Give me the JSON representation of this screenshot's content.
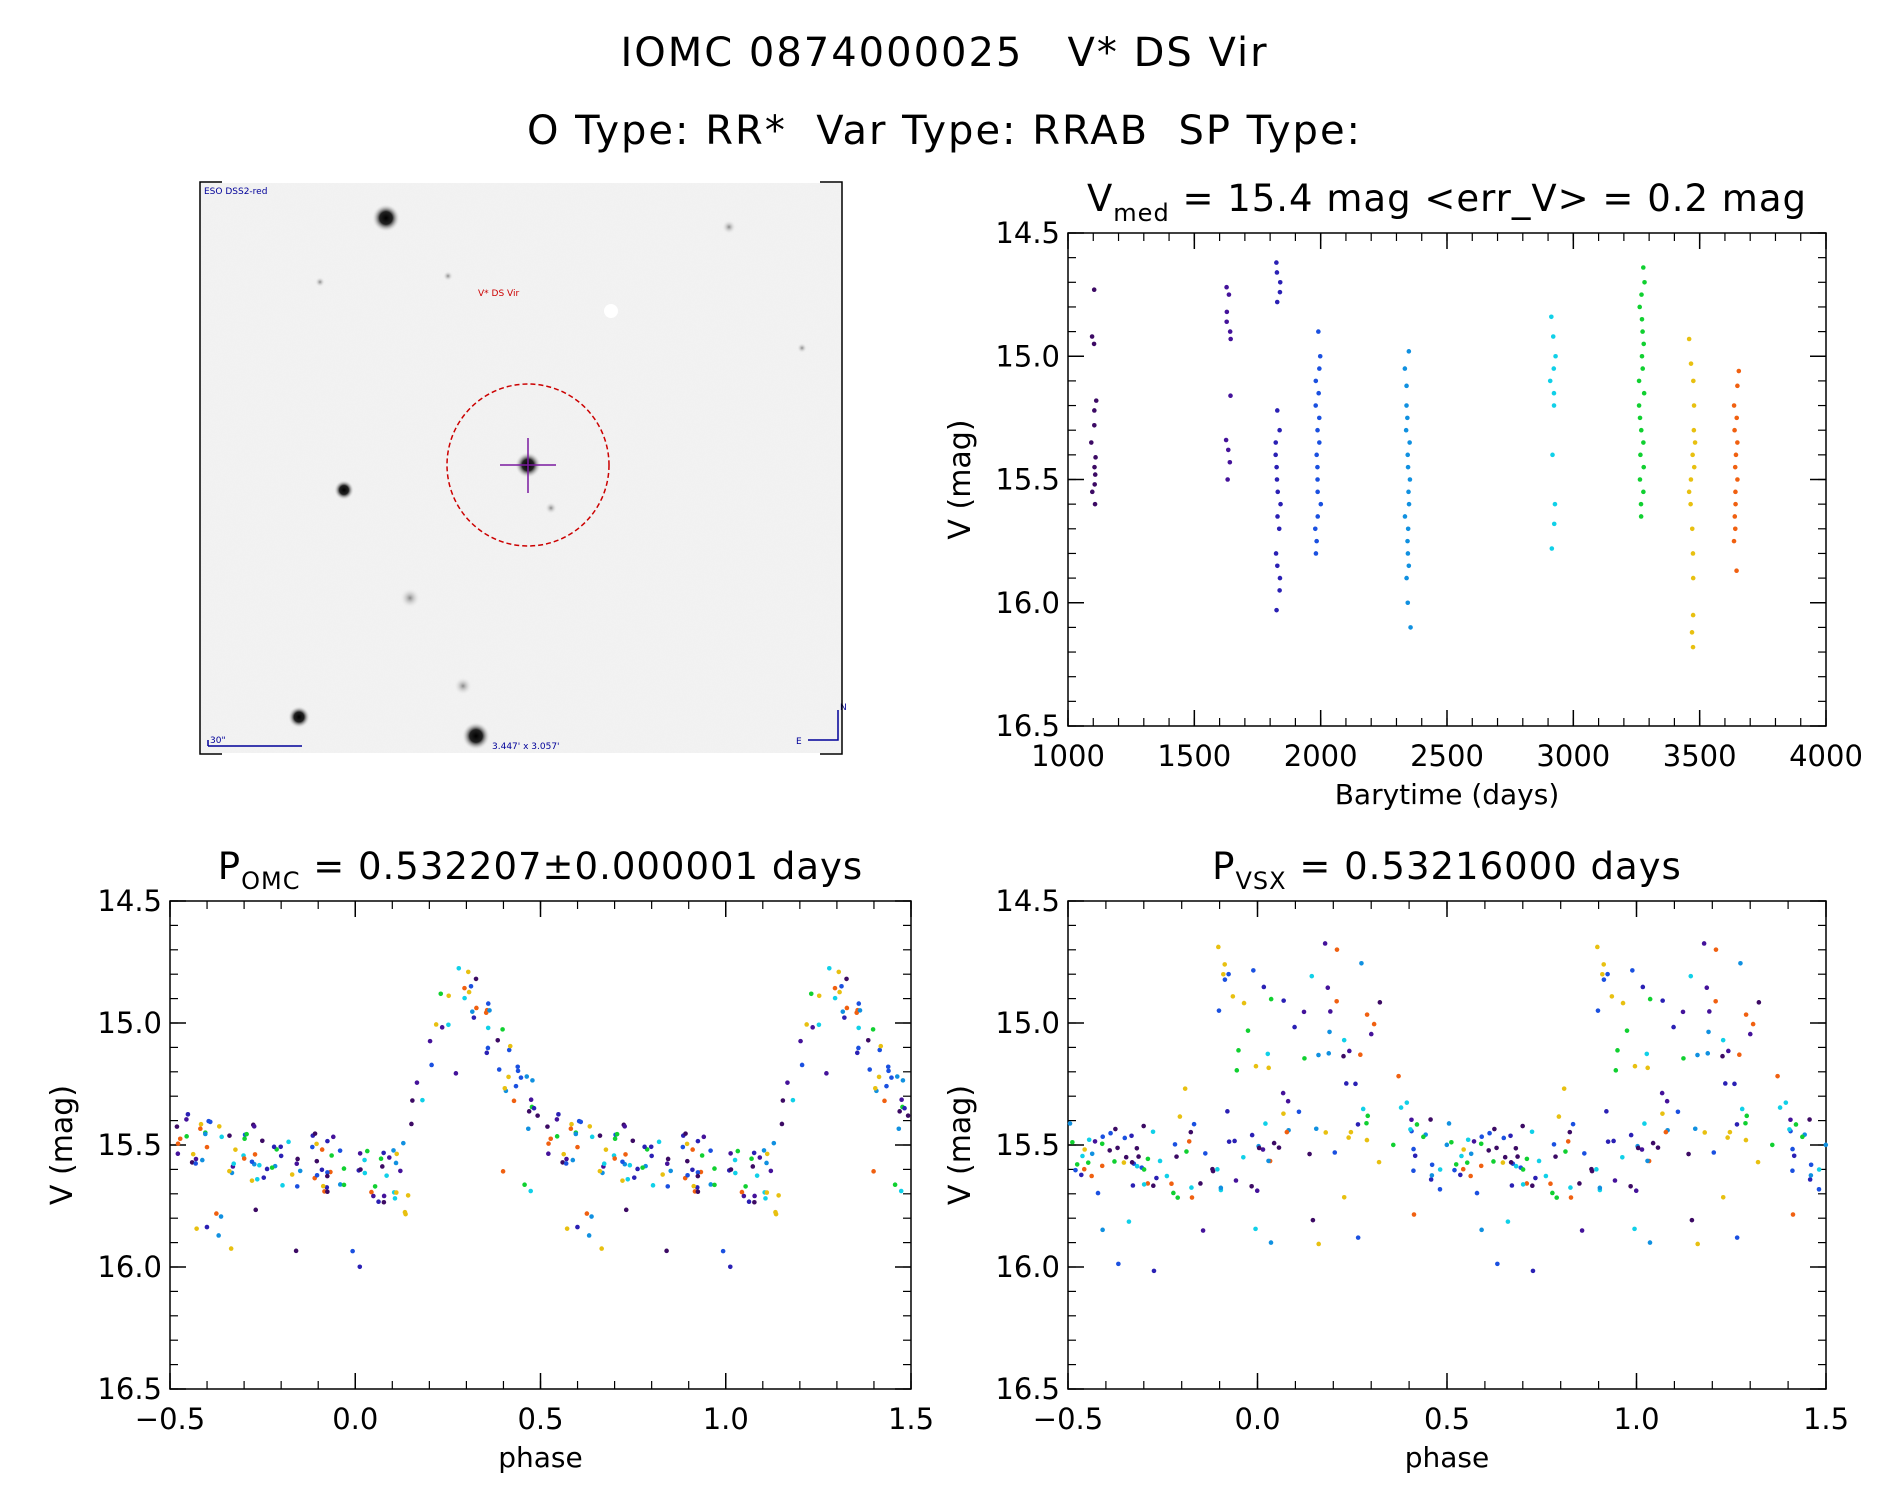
{
  "header": {
    "title_line1": "IOMC 0874000025   V* DS Vir",
    "title_line2": "O Type: RR*  Var Type: RRAB  SP Type:"
  },
  "finder_chart": {
    "survey_label": "ESO DSS2-red",
    "target_label": "V* DS Vir",
    "scale_label": "30\"",
    "fov_label": "3.447' x 3.057'",
    "north_label": "N",
    "east_label": "E",
    "colors": {
      "circle": "#cc0000",
      "cross": "#7a1aa0",
      "label": "#000099"
    }
  },
  "chart_data": [
    {
      "id": "light_curve",
      "type": "scatter",
      "title_main": "V",
      "title_sub": "med",
      "title_rest": " = 15.4 mag <err_V> = 0.2 mag",
      "xlabel": "Barytime (days)",
      "ylabel": "V (mag)",
      "xlim": [
        1000,
        4000
      ],
      "ylim": [
        14.5,
        16.5
      ],
      "y_inverted": true,
      "xticks": [
        1000,
        1500,
        2000,
        2500,
        3000,
        3500,
        4000
      ],
      "xtick_labels": [
        "1000",
        "1500",
        "2000",
        "2500",
        "3000",
        "3500",
        "4000"
      ],
      "yticks": [
        14.5,
        15.0,
        15.5,
        16.0,
        16.5
      ],
      "ytick_labels": [
        "14.5",
        "15.0",
        "15.5",
        "16.0",
        "16.5"
      ],
      "groups": [
        {
          "name": "g1",
          "color": "#3c0a64",
          "x": 1100,
          "values": [
            14.73,
            14.92,
            14.95,
            15.18,
            15.22,
            15.28,
            15.35,
            15.41,
            15.45,
            15.48,
            15.52,
            15.55,
            15.6
          ]
        },
        {
          "name": "g2",
          "color": "#44129a",
          "x": 1635,
          "values": [
            14.72,
            14.75,
            14.82,
            14.86,
            14.9,
            14.93,
            15.16,
            15.34,
            15.38,
            15.43,
            15.5
          ]
        },
        {
          "name": "g3",
          "color": "#2a20b4",
          "x": 1830,
          "values": [
            14.62,
            14.66,
            14.7,
            14.74,
            14.78,
            15.22,
            15.3,
            15.35,
            15.4,
            15.45,
            15.5,
            15.55,
            15.6,
            15.65,
            15.7,
            15.8,
            15.85,
            15.9,
            15.95,
            16.03
          ]
        },
        {
          "name": "g4",
          "color": "#1a50e0",
          "x": 1990,
          "values": [
            14.9,
            15.0,
            15.05,
            15.1,
            15.15,
            15.2,
            15.25,
            15.3,
            15.35,
            15.4,
            15.45,
            15.5,
            15.55,
            15.6,
            15.65,
            15.7,
            15.75,
            15.8
          ]
        },
        {
          "name": "g5",
          "color": "#1090e0",
          "x": 2345,
          "values": [
            14.98,
            15.05,
            15.12,
            15.2,
            15.25,
            15.3,
            15.35,
            15.4,
            15.45,
            15.5,
            15.55,
            15.6,
            15.65,
            15.7,
            15.75,
            15.8,
            15.85,
            15.9,
            16.0,
            16.1
          ]
        },
        {
          "name": "g6",
          "color": "#10d0e8",
          "x": 2920,
          "values": [
            14.84,
            14.92,
            15.0,
            15.05,
            15.1,
            15.15,
            15.2,
            15.4,
            15.6,
            15.68,
            15.78
          ]
        },
        {
          "name": "g7",
          "color": "#10d030",
          "x": 3270,
          "values": [
            14.64,
            14.7,
            14.75,
            14.8,
            14.85,
            14.9,
            14.95,
            15.0,
            15.05,
            15.1,
            15.15,
            15.2,
            15.25,
            15.3,
            15.35,
            15.4,
            15.45,
            15.5,
            15.55,
            15.6,
            15.65
          ]
        },
        {
          "name": "g8",
          "color": "#e8c010",
          "x": 3470,
          "values": [
            14.93,
            15.03,
            15.1,
            15.2,
            15.3,
            15.35,
            15.4,
            15.45,
            15.5,
            15.55,
            15.6,
            15.7,
            15.8,
            15.9,
            16.05,
            16.12,
            16.18
          ]
        },
        {
          "name": "g9",
          "color": "#f06010",
          "x": 3645,
          "values": [
            15.06,
            15.12,
            15.2,
            15.25,
            15.3,
            15.35,
            15.4,
            15.45,
            15.5,
            15.55,
            15.6,
            15.65,
            15.7,
            15.75,
            15.87
          ]
        }
      ]
    },
    {
      "id": "phase_omc",
      "type": "scatter",
      "title_main": "P",
      "title_sub": "OMC",
      "title_rest": " = 0.532207±0.000001 days",
      "xlabel": "phase",
      "ylabel": "V (mag)",
      "xlim": [
        -0.5,
        1.5
      ],
      "ylim": [
        14.5,
        16.5
      ],
      "y_inverted": true,
      "xticks": [
        -0.5,
        0.0,
        0.5,
        1.0,
        1.5
      ],
      "xtick_labels": [
        "−0.5",
        "0.0",
        "0.5",
        "1.0",
        "1.5"
      ],
      "yticks": [
        14.5,
        15.0,
        15.5,
        16.0,
        16.5
      ],
      "ytick_labels": [
        "14.5",
        "15.0",
        "15.5",
        "16.0",
        "16.5"
      ],
      "curve_model": "rrab_template",
      "scatter_mag": 0.12
    },
    {
      "id": "phase_vsx",
      "type": "scatter",
      "title_main": "P",
      "title_sub": "VSX",
      "title_rest": " = 0.53216000 days",
      "xlabel": "phase",
      "ylabel": "V (mag)",
      "xlim": [
        -0.5,
        1.5
      ],
      "ylim": [
        14.5,
        16.5
      ],
      "y_inverted": true,
      "xticks": [
        -0.5,
        0.0,
        0.5,
        1.0,
        1.5
      ],
      "xtick_labels": [
        "−0.5",
        "0.0",
        "0.5",
        "1.0",
        "1.5"
      ],
      "yticks": [
        14.5,
        15.0,
        15.5,
        16.0,
        16.5
      ],
      "ytick_labels": [
        "14.5",
        "15.0",
        "15.5",
        "16.0",
        "16.5"
      ],
      "curve_model": "rrab_template_dephased",
      "scatter_mag": 0.14
    }
  ]
}
